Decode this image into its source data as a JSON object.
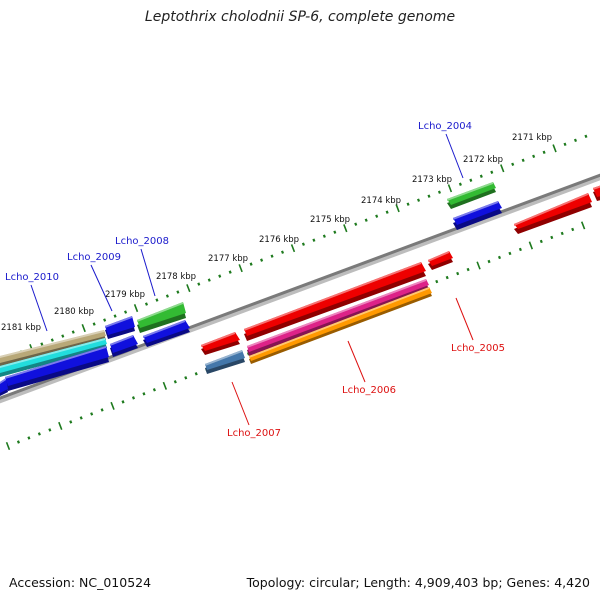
{
  "title": "Leptothrix cholodnii SP-6, complete genome",
  "footer": {
    "accession": "Accession: NC_010524",
    "info": "Topology: circular; Length: 4,909,403 bp; Genes: 4,420"
  },
  "colors": {
    "backbone": "#7a7a7a",
    "tick": "#1e7a1e",
    "forward_label": "#1a1acc",
    "reverse_label": "#dd1111",
    "red": "#ee0000",
    "blue": "#1010dd",
    "green": "#33bb33",
    "tan": "#b8a878",
    "cyan": "#22dddd",
    "magenta": "#dd2288",
    "orange": "#ff9900",
    "steelblue": "#4477aa"
  },
  "scale_labels": [
    "2171 kbp",
    "2172 kbp",
    "2173 kbp",
    "2174 kbp",
    "2175 kbp",
    "2176 kbp",
    "2177 kbp",
    "2178 kbp",
    "2179 kbp",
    "2180 kbp",
    "2181 kbp"
  ],
  "gene_labels": [
    {
      "text": "Lcho_2004",
      "strand": "forward"
    },
    {
      "text": "Lcho_2005",
      "strand": "reverse"
    },
    {
      "text": "Lcho_2006",
      "strand": "reverse"
    },
    {
      "text": "Lcho_2007",
      "strand": "reverse"
    },
    {
      "text": "Lcho_2008",
      "strand": "forward"
    },
    {
      "text": "Lcho_2009",
      "strand": "forward"
    },
    {
      "text": "Lcho_2010",
      "strand": "forward"
    }
  ]
}
